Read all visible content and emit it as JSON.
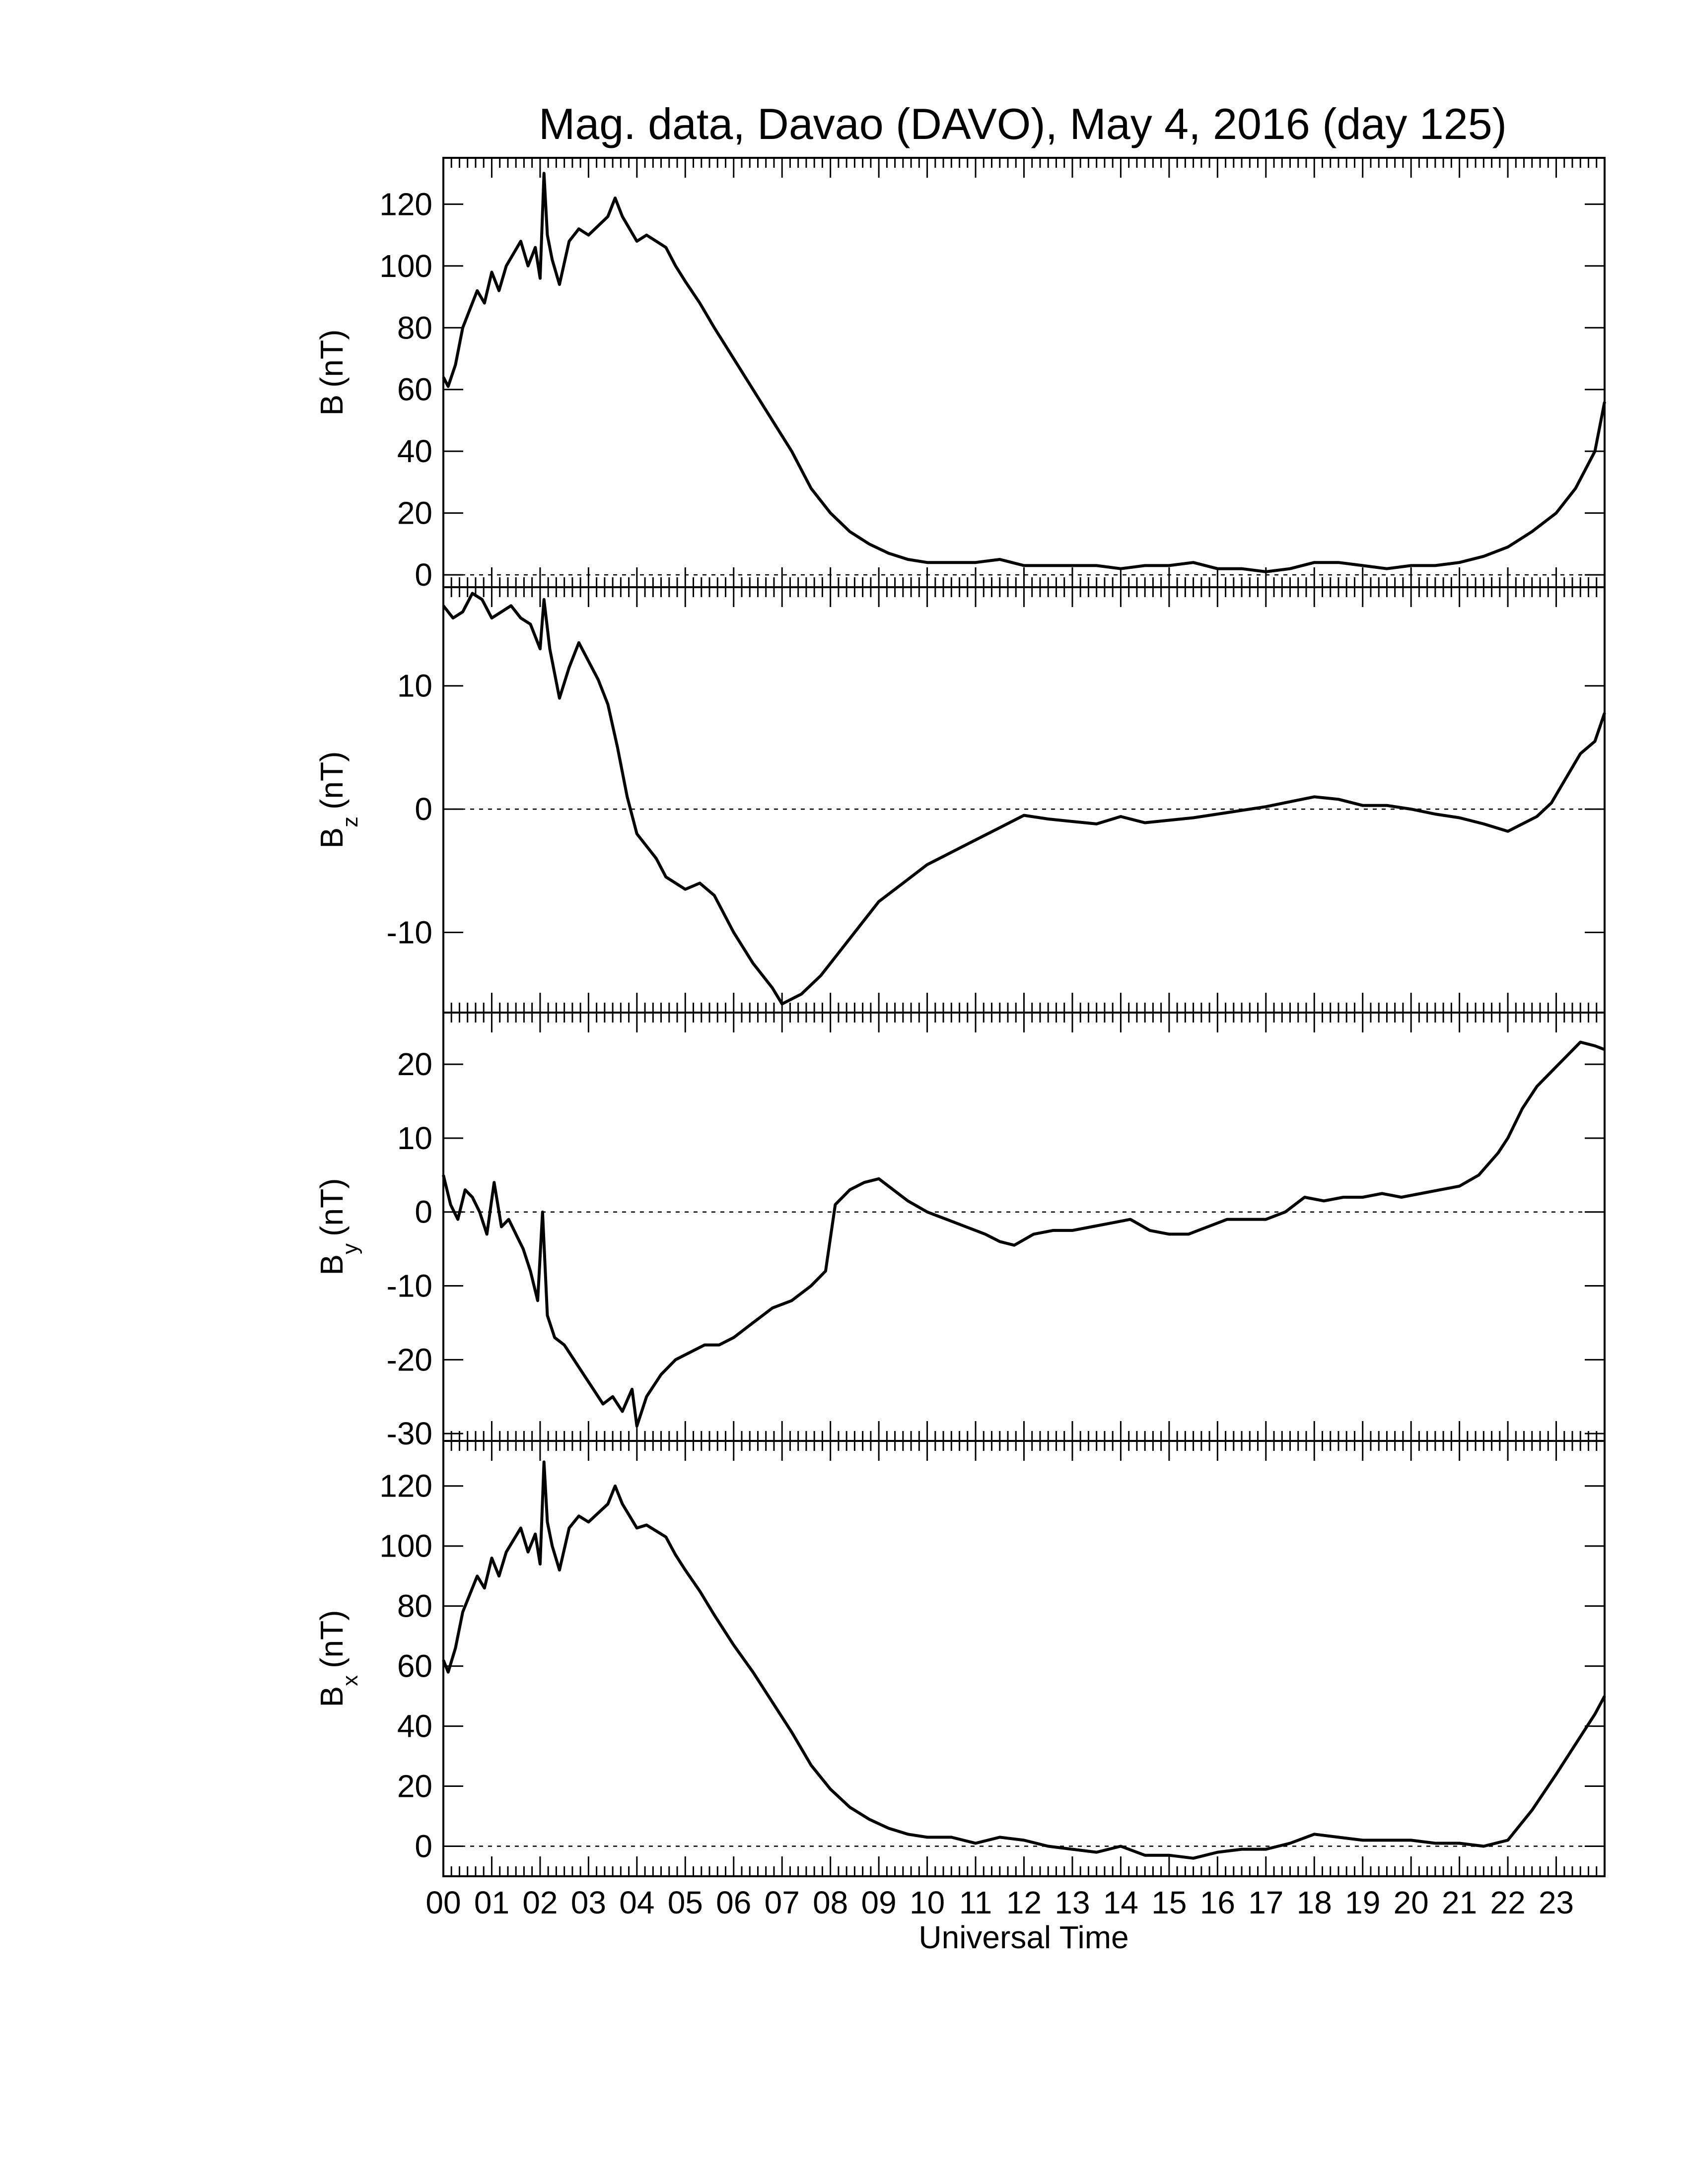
{
  "chart_data": {
    "type": "line",
    "title": "Mag. data, Davao (DAVO), May 4, 2016 (day 125)",
    "xlabel": "Universal Time",
    "x_tick_labels": [
      "00",
      "01",
      "02",
      "03",
      "04",
      "05",
      "06",
      "07",
      "08",
      "09",
      "10",
      "11",
      "12",
      "13",
      "14",
      "15",
      "16",
      "17",
      "18",
      "19",
      "20",
      "21",
      "22",
      "23"
    ],
    "xlim": [
      0,
      24
    ],
    "panels": [
      {
        "id": "B",
        "ylabel": "B (nT)",
        "ylabel_main": "B",
        "ylabel_sub": "",
        "ylabel_unit": "(nT)",
        "ylim": [
          -4,
          135
        ],
        "yticks": [
          0,
          20,
          40,
          60,
          80,
          100,
          120
        ],
        "ytick_labels": [
          "0",
          "20",
          "40",
          "60",
          "80",
          "100",
          "120"
        ],
        "zero_line": true,
        "x": [
          0,
          0.1,
          0.25,
          0.4,
          0.55,
          0.7,
          0.85,
          1.0,
          1.15,
          1.3,
          1.45,
          1.6,
          1.75,
          1.9,
          2.0,
          2.08,
          2.15,
          2.25,
          2.4,
          2.6,
          2.8,
          3.0,
          3.2,
          3.4,
          3.55,
          3.7,
          3.85,
          4.0,
          4.2,
          4.4,
          4.6,
          4.8,
          5.0,
          5.3,
          5.6,
          6.0,
          6.4,
          6.8,
          7.2,
          7.6,
          8.0,
          8.4,
          8.8,
          9.2,
          9.6,
          10.0,
          10.5,
          11.0,
          11.5,
          12.0,
          12.5,
          13.0,
          13.5,
          14.0,
          14.5,
          15.0,
          15.5,
          16.0,
          16.5,
          17.0,
          17.5,
          18.0,
          18.5,
          19.0,
          19.5,
          20.0,
          20.5,
          21.0,
          21.5,
          22.0,
          22.5,
          23.0,
          23.4,
          23.8,
          24.0
        ],
        "y": [
          64,
          61,
          68,
          80,
          86,
          92,
          88,
          98,
          92,
          100,
          104,
          108,
          100,
          106,
          96,
          130,
          110,
          102,
          94,
          108,
          112,
          110,
          113,
          116,
          122,
          116,
          112,
          108,
          110,
          108,
          106,
          100,
          95,
          88,
          80,
          70,
          60,
          50,
          40,
          28,
          20,
          14,
          10,
          7,
          5,
          4,
          4,
          4,
          5,
          3,
          3,
          3,
          3,
          2,
          3,
          3,
          4,
          2,
          2,
          1,
          2,
          4,
          4,
          3,
          2,
          3,
          3,
          4,
          6,
          9,
          14,
          20,
          28,
          40,
          56
        ]
      },
      {
        "id": "Bz",
        "ylabel": "Bz (nT)",
        "ylabel_main": "B",
        "ylabel_sub": "z",
        "ylabel_unit": "(nT)",
        "ylim": [
          -16.5,
          18
        ],
        "yticks": [
          -10,
          0,
          10
        ],
        "ytick_labels": [
          "-10",
          "0",
          "10"
        ],
        "zero_line": true,
        "x": [
          0,
          0.2,
          0.4,
          0.6,
          0.8,
          1.0,
          1.2,
          1.4,
          1.6,
          1.8,
          2.0,
          2.08,
          2.2,
          2.4,
          2.6,
          2.8,
          3.0,
          3.2,
          3.4,
          3.6,
          3.8,
          4.0,
          4.2,
          4.4,
          4.6,
          4.8,
          5.0,
          5.3,
          5.6,
          6.0,
          6.4,
          6.8,
          7.0,
          7.4,
          7.8,
          8.2,
          8.6,
          9.0,
          9.5,
          10.0,
          10.5,
          11.0,
          11.5,
          12.0,
          12.5,
          13.0,
          13.5,
          14.0,
          14.5,
          15.0,
          15.5,
          16.0,
          16.5,
          17.0,
          17.5,
          18.0,
          18.5,
          19.0,
          19.5,
          20.0,
          20.5,
          21.0,
          21.5,
          22.0,
          22.3,
          22.6,
          22.9,
          23.2,
          23.5,
          23.8,
          24.0
        ],
        "y": [
          16.5,
          15.5,
          16,
          17.5,
          17,
          15.5,
          16,
          16.5,
          15.5,
          15,
          13,
          17,
          13,
          9,
          11.5,
          13.5,
          12,
          10.5,
          8.5,
          5,
          1,
          -2,
          -3,
          -4,
          -5.5,
          -6,
          -6.5,
          -6,
          -7,
          -10,
          -12.5,
          -14.5,
          -15.8,
          -15,
          -13.5,
          -11.5,
          -9.5,
          -7.5,
          -6,
          -4.5,
          -3.5,
          -2.5,
          -1.5,
          -0.5,
          -0.8,
          -1,
          -1.2,
          -0.6,
          -1.1,
          -0.9,
          -0.7,
          -0.4,
          -0.1,
          0.2,
          0.6,
          1,
          0.8,
          0.3,
          0.3,
          0,
          -0.4,
          -0.7,
          -1.2,
          -1.8,
          -1.2,
          -0.6,
          0.5,
          2.5,
          4.5,
          5.5,
          7.8
        ]
      },
      {
        "id": "By",
        "ylabel": "By (nT)",
        "ylabel_main": "B",
        "ylabel_sub": "y",
        "ylabel_unit": "(nT)",
        "ylim": [
          -31,
          27
        ],
        "yticks": [
          -30,
          -20,
          -10,
          0,
          10,
          20
        ],
        "ytick_labels": [
          "-30",
          "-20",
          "-10",
          "0",
          "10",
          "20"
        ],
        "zero_line": true,
        "x": [
          0,
          0.15,
          0.3,
          0.45,
          0.6,
          0.75,
          0.9,
          1.05,
          1.2,
          1.35,
          1.5,
          1.65,
          1.8,
          1.95,
          2.05,
          2.15,
          2.3,
          2.5,
          2.7,
          2.9,
          3.1,
          3.3,
          3.5,
          3.7,
          3.9,
          4.0,
          4.2,
          4.5,
          4.8,
          5.1,
          5.4,
          5.7,
          6.0,
          6.4,
          6.8,
          7.2,
          7.6,
          7.9,
          8.1,
          8.4,
          8.7,
          9.0,
          9.3,
          9.6,
          10.0,
          10.4,
          10.8,
          11.2,
          11.5,
          11.8,
          12.2,
          12.6,
          13.0,
          13.4,
          13.8,
          14.2,
          14.6,
          15.0,
          15.4,
          15.8,
          16.2,
          16.6,
          17.0,
          17.4,
          17.8,
          18.2,
          18.6,
          19.0,
          19.4,
          19.8,
          20.2,
          20.6,
          21.0,
          21.4,
          21.8,
          22.0,
          22.3,
          22.6,
          22.9,
          23.2,
          23.5,
          23.8,
          24.0
        ],
        "y": [
          5,
          1,
          -1,
          3,
          2,
          0,
          -3,
          4,
          -2,
          -1,
          -3,
          -5,
          -8,
          -12,
          0,
          -14,
          -17,
          -18,
          -20,
          -22,
          -24,
          -26,
          -25,
          -27,
          -24,
          -29,
          -25,
          -22,
          -20,
          -19,
          -18,
          -18,
          -17,
          -15,
          -13,
          -12,
          -10,
          -8,
          1,
          3,
          4,
          4.5,
          3,
          1.5,
          0,
          -1,
          -2,
          -3,
          -4,
          -4.5,
          -3,
          -2.5,
          -2.5,
          -2,
          -1.5,
          -1,
          -2.5,
          -3,
          -3,
          -2,
          -1,
          -1,
          -1,
          0,
          2,
          1.5,
          2,
          2,
          2.5,
          2,
          2.5,
          3,
          3.5,
          5,
          8,
          10,
          14,
          17,
          19,
          21,
          23,
          22.5,
          22
        ]
      },
      {
        "id": "Bx",
        "ylabel": "Bx (nT)",
        "ylabel_main": "B",
        "ylabel_sub": "x",
        "ylabel_unit": "(nT)",
        "ylim": [
          -10,
          135
        ],
        "yticks": [
          0,
          20,
          40,
          60,
          80,
          100,
          120
        ],
        "ytick_labels": [
          "0",
          "20",
          "40",
          "60",
          "80",
          "100",
          "120"
        ],
        "zero_line": true,
        "x": [
          0,
          0.1,
          0.25,
          0.4,
          0.55,
          0.7,
          0.85,
          1.0,
          1.15,
          1.3,
          1.45,
          1.6,
          1.75,
          1.9,
          2.0,
          2.08,
          2.15,
          2.25,
          2.4,
          2.6,
          2.8,
          3.0,
          3.2,
          3.4,
          3.55,
          3.7,
          3.85,
          4.0,
          4.2,
          4.4,
          4.6,
          4.8,
          5.0,
          5.3,
          5.6,
          6.0,
          6.4,
          6.8,
          7.2,
          7.6,
          8.0,
          8.4,
          8.8,
          9.2,
          9.6,
          10.0,
          10.5,
          11.0,
          11.5,
          12.0,
          12.5,
          13.0,
          13.5,
          14.0,
          14.5,
          15.0,
          15.5,
          16.0,
          16.5,
          17.0,
          17.5,
          18.0,
          18.5,
          19.0,
          19.5,
          20.0,
          20.5,
          21.0,
          21.5,
          22.0,
          22.5,
          23.0,
          23.4,
          23.8,
          24.0
        ],
        "y": [
          62,
          58,
          66,
          78,
          84,
          90,
          86,
          96,
          90,
          98,
          102,
          106,
          98,
          104,
          94,
          128,
          108,
          100,
          92,
          106,
          110,
          108,
          111,
          114,
          120,
          114,
          110,
          106,
          107,
          105,
          103,
          97,
          92,
          85,
          77,
          67,
          58,
          48,
          38,
          27,
          19,
          13,
          9,
          6,
          4,
          3,
          3,
          1,
          3,
          2,
          0,
          -1,
          -2,
          0,
          -3,
          -3,
          -4,
          -2,
          -1,
          -1,
          1,
          4,
          3,
          2,
          2,
          2,
          1,
          1,
          0,
          2,
          12,
          24,
          34,
          44,
          50
        ]
      }
    ]
  }
}
